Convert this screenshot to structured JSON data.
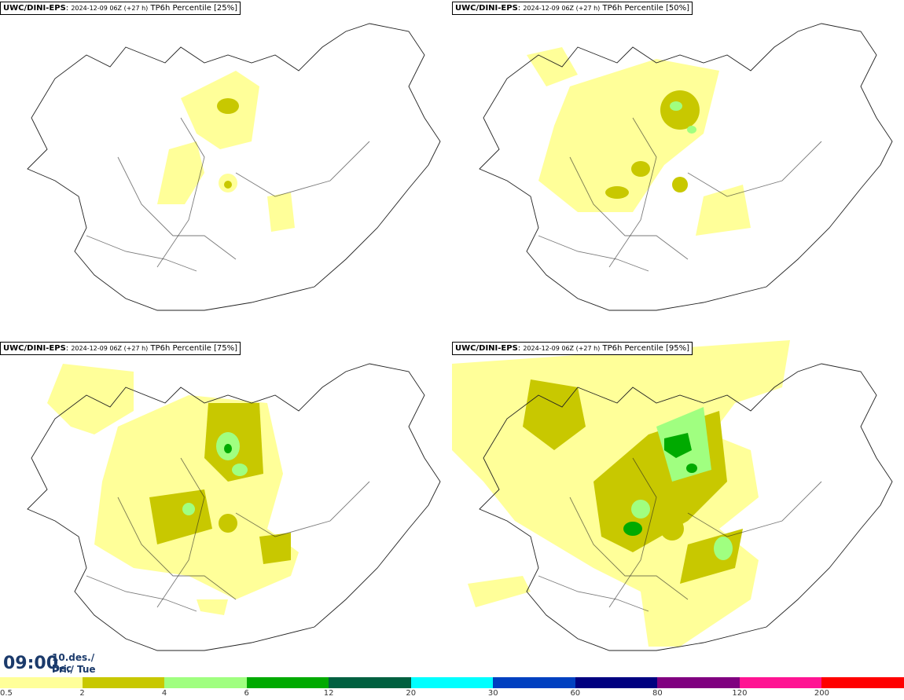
{
  "panels": [
    {
      "model": "UWC/DINI-EPS",
      "sep": ":",
      "run": "2024-12-09 06Z (+27 h)",
      "label": "TP6h Percentile [25%]"
    },
    {
      "model": "UWC/DINI-EPS",
      "sep": ":",
      "run": "2024-12-09 06Z (+27 h)",
      "label": "TP6h Percentile [50%]"
    },
    {
      "model": "UWC/DINI-EPS",
      "sep": ":",
      "run": "2024-12-09 06Z (+27 h)",
      "label": "TP6h Percentile [75%]"
    },
    {
      "model": "UWC/DINI-EPS",
      "sep": ":",
      "run": "2024-12-09 06Z (+27 h)",
      "label": "TP6h Percentile [95%]"
    }
  ],
  "valid_time": {
    "time": "09:00",
    "date": "10.des./ Dec",
    "weekday": "Þri./ Tue"
  },
  "legend": {
    "ticks": [
      "0.5",
      "2",
      "4",
      "6",
      "12",
      "20",
      "30",
      "60",
      "80",
      "120",
      "200"
    ],
    "colors": [
      "#ffff99",
      "#c8c800",
      "#a0ff80",
      "#00aa00",
      "#006040",
      "#00ffff",
      "#0040c0",
      "#000080",
      "#800080",
      "#ff1493",
      "#ff0000"
    ]
  }
}
